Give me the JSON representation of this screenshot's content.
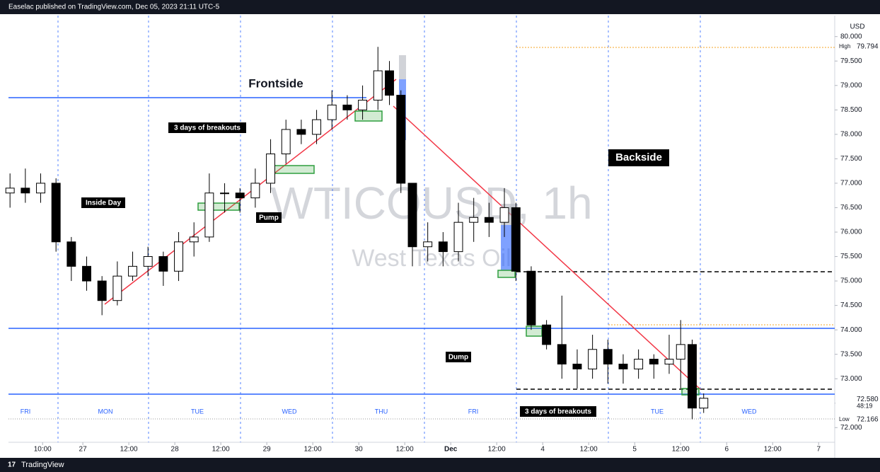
{
  "header": {
    "text": "Easelac published on TradingView.com, Dec 05, 2023 21:11 UTC-5"
  },
  "footer": {
    "brand": "TradingView"
  },
  "chart_data": {
    "type": "candlestick",
    "watermark": "WTICOUSD, 1h",
    "subtitle": "West Texas Oil",
    "currency": "USD",
    "x": [
      -19,
      -15,
      -11,
      -7,
      -3,
      1,
      5,
      9,
      13,
      17,
      21,
      25,
      29,
      33,
      37,
      41,
      45,
      49,
      53,
      57,
      61,
      65,
      69,
      73,
      77,
      80,
      83,
      86,
      90,
      94,
      98,
      102,
      106,
      110,
      113,
      117,
      121,
      125,
      129,
      133,
      137,
      141,
      145,
      149,
      153,
      156,
      159,
      162
    ],
    "open": [
      76.8,
      76.9,
      76.8,
      77.0,
      75.8,
      75.3,
      75.0,
      74.6,
      75.1,
      75.3,
      75.5,
      75.2,
      75.8,
      75.9,
      76.8,
      76.8,
      76.7,
      77.0,
      77.6,
      78.1,
      78.0,
      78.3,
      78.6,
      78.5,
      78.7,
      79.3,
      78.8,
      77.0,
      75.7,
      75.8,
      75.6,
      76.2,
      76.3,
      76.2,
      76.5,
      75.2,
      74.1,
      73.7,
      73.3,
      73.2,
      73.6,
      73.3,
      73.2,
      73.4,
      73.3,
      73.4,
      73.7,
      72.4
    ],
    "high": [
      77.2,
      77.3,
      77.2,
      77.1,
      75.9,
      75.5,
      75.1,
      75.4,
      75.6,
      75.7,
      75.6,
      76.0,
      76.2,
      77.2,
      77.0,
      76.9,
      77.3,
      77.9,
      78.3,
      78.3,
      78.5,
      78.9,
      78.8,
      79.0,
      79.79,
      79.5,
      78.9,
      77.0,
      76.2,
      76.0,
      76.6,
      76.7,
      76.6,
      76.9,
      76.6,
      75.3,
      74.2,
      74.7,
      73.6,
      73.9,
      73.8,
      73.5,
      73.6,
      73.5,
      73.9,
      74.2,
      73.8,
      72.7
    ],
    "low": [
      76.5,
      76.6,
      76.6,
      75.6,
      75.0,
      74.8,
      74.3,
      74.5,
      75.0,
      75.1,
      74.9,
      75.0,
      75.5,
      75.8,
      76.4,
      76.4,
      76.5,
      76.8,
      77.4,
      77.8,
      77.8,
      78.1,
      78.3,
      78.3,
      78.5,
      78.6,
      76.8,
      75.3,
      75.4,
      75.3,
      75.4,
      75.8,
      75.9,
      75.9,
      75.0,
      74.0,
      73.6,
      73.0,
      72.8,
      73.0,
      72.9,
      72.9,
      73.0,
      73.0,
      73.1,
      72.8,
      72.17,
      72.3
    ],
    "close": [
      76.9,
      76.8,
      77.0,
      75.8,
      75.3,
      75.0,
      74.6,
      75.1,
      75.3,
      75.5,
      75.2,
      75.8,
      75.9,
      76.8,
      76.8,
      76.7,
      77.0,
      77.6,
      78.1,
      78.0,
      78.3,
      78.6,
      78.5,
      78.7,
      79.3,
      78.8,
      77.0,
      75.7,
      75.8,
      75.6,
      76.2,
      76.3,
      76.2,
      76.5,
      75.2,
      74.1,
      73.7,
      73.3,
      73.2,
      73.6,
      73.3,
      73.2,
      73.4,
      73.3,
      73.4,
      73.7,
      72.4,
      72.6
    ],
    "xlim": [
      -19.4,
      196.2
    ],
    "xticks": [
      {
        "value": -10.5,
        "label": "10:00"
      },
      {
        "value": 0,
        "label": "27"
      },
      {
        "value": 12,
        "label": "12:00"
      },
      {
        "value": 24,
        "label": "28"
      },
      {
        "value": 36,
        "label": "12:00"
      },
      {
        "value": 48,
        "label": "29"
      },
      {
        "value": 60,
        "label": "12:00"
      },
      {
        "value": 72,
        "label": "30"
      },
      {
        "value": 84,
        "label": "12:00"
      },
      {
        "value": 96,
        "label": "Dec"
      },
      {
        "value": 108,
        "label": "12:00"
      },
      {
        "value": 120,
        "label": "4"
      },
      {
        "value": 132,
        "label": "12:00"
      },
      {
        "value": 144,
        "label": "5"
      },
      {
        "value": 156,
        "label": "12:00"
      },
      {
        "value": 168,
        "label": "6"
      },
      {
        "value": 180,
        "label": "12:00"
      },
      {
        "value": 192,
        "label": "7"
      }
    ],
    "ylim": [
      71.7,
      80.43
    ],
    "yticks": [
      {
        "value": 72,
        "label": "72.000"
      },
      {
        "value": 72.5,
        "label": "72.500"
      },
      {
        "value": 73,
        "label": "73.000"
      },
      {
        "value": 73.5,
        "label": "73.500"
      },
      {
        "value": 74,
        "label": "74.000"
      },
      {
        "value": 74.5,
        "label": "74.500"
      },
      {
        "value": 75,
        "label": "75.000"
      },
      {
        "value": 75.5,
        "label": "75.500"
      },
      {
        "value": 76,
        "label": "76.000"
      },
      {
        "value": 76.5,
        "label": "76.500"
      },
      {
        "value": 77,
        "label": "77.000"
      },
      {
        "value": 77.5,
        "label": "77.500"
      },
      {
        "value": 78,
        "label": "78.000"
      },
      {
        "value": 78.5,
        "label": "78.500"
      },
      {
        "value": 79,
        "label": "79.000"
      },
      {
        "value": 79.5,
        "label": "79.500"
      },
      {
        "value": 80,
        "label": "80.000"
      }
    ],
    "high_marker": {
      "name": "High",
      "value": 79.794
    },
    "low_marker": {
      "name": "Low",
      "value": 72.166
    },
    "last_price": {
      "value": 72.58,
      "label": "72.580",
      "countdown": "48:19"
    },
    "annotations": [
      "Frontside",
      "Backside",
      "3 days of breakouts",
      "3 days of breakouts",
      "Inside Day",
      "Pump",
      "Dump"
    ],
    "session_labels": [
      "FRI",
      "MON",
      "TUE",
      "WED",
      "THU",
      "FRI",
      "TUE",
      "WED"
    ]
  }
}
